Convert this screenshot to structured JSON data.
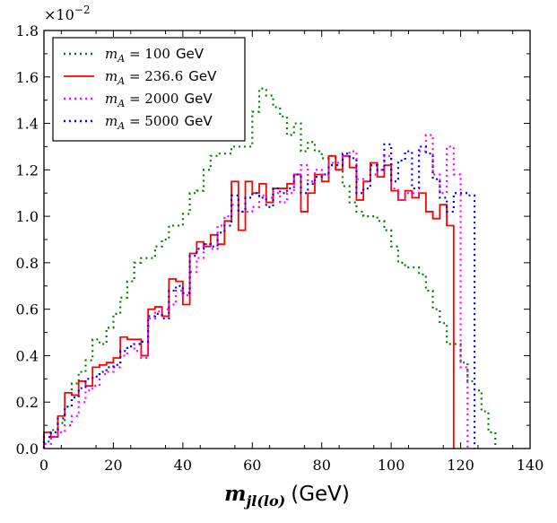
{
  "chart_data": {
    "type": "histogram",
    "title": "",
    "xlabel_math": "m",
    "xlabel_math_sub": "jl(lo)",
    "xlabel_unit": "(GeV)",
    "ylabel": "",
    "y_scale_base": "×10",
    "y_scale_exp": "−2",
    "xlim": [
      0,
      140
    ],
    "ylim": [
      0,
      1.8
    ],
    "x_ticks": [
      0,
      20,
      40,
      60,
      80,
      100,
      120,
      140
    ],
    "y_ticks": [
      0.0,
      0.2,
      0.4,
      0.6,
      0.8,
      1.0,
      1.2,
      1.4,
      1.6,
      1.8
    ],
    "y_tick_labels": [
      "0.0",
      "0.2",
      "0.4",
      "0.6",
      "0.8",
      "1.0",
      "1.2",
      "1.4",
      "1.6",
      "1.8"
    ],
    "legend_position": "top-left",
    "bin_edges_start": 0,
    "bin_width": 2,
    "series": [
      {
        "name": "mA = 100 GeV",
        "label_var": "m",
        "label_sub": "A",
        "label_value": " = 100",
        "label_unit": "GeV",
        "color": "#008000",
        "style": "dotted",
        "values": [
          0.03,
          0.08,
          0.11,
          0.18,
          0.28,
          0.33,
          0.38,
          0.47,
          0.45,
          0.52,
          0.58,
          0.65,
          0.72,
          0.8,
          0.82,
          0.82,
          0.87,
          0.9,
          0.96,
          0.96,
          1.01,
          1.1,
          1.11,
          1.2,
          1.26,
          1.27,
          1.27,
          1.3,
          1.3,
          1.3,
          1.45,
          1.55,
          1.52,
          1.47,
          1.43,
          1.35,
          1.4,
          1.28,
          1.32,
          1.28,
          1.25,
          1.26,
          1.2,
          1.13,
          1.06,
          1.02,
          1.0,
          1.0,
          0.98,
          0.94,
          0.87,
          0.8,
          0.78,
          0.78,
          0.75,
          0.68,
          0.6,
          0.54,
          0.45,
          0.45,
          0.37,
          0.29,
          0.25,
          0.16,
          0.07
        ]
      },
      {
        "name": "mA = 236.6 GeV",
        "label_var": "m",
        "label_sub": "A",
        "label_value": " = 236.6",
        "label_unit": "GeV",
        "color": "#ff0000",
        "style": "solid",
        "values": [
          0.07,
          0.05,
          0.14,
          0.24,
          0.23,
          0.29,
          0.27,
          0.35,
          0.36,
          0.37,
          0.39,
          0.48,
          0.47,
          0.47,
          0.4,
          0.6,
          0.61,
          0.57,
          0.73,
          0.72,
          0.62,
          0.84,
          0.89,
          0.87,
          0.92,
          0.88,
          0.98,
          1.15,
          0.94,
          1.15,
          1.1,
          1.14,
          1.06,
          1.12,
          1.12,
          1.14,
          1.18,
          1.02,
          1.1,
          1.18,
          1.15,
          1.26,
          1.2,
          1.26,
          1.21,
          1.07,
          1.15,
          1.23,
          1.17,
          1.22,
          1.11,
          1.07,
          1.11,
          1.08,
          1.1,
          1.02,
          0.99,
          1.05,
          0.96
        ]
      },
      {
        "name": "mA = 2000 GeV",
        "label_var": "m",
        "label_sub": "A",
        "label_value": " = 2000",
        "label_unit": "GeV",
        "color": "#ff00ff",
        "style": "dotted",
        "values": [
          0.02,
          0.05,
          0.07,
          0.1,
          0.14,
          0.2,
          0.25,
          0.27,
          0.32,
          0.33,
          0.35,
          0.4,
          0.44,
          0.42,
          0.39,
          0.56,
          0.59,
          0.6,
          0.62,
          0.68,
          0.66,
          0.76,
          0.82,
          0.88,
          0.86,
          0.96,
          1.0,
          1.05,
          1.02,
          1.02,
          1.04,
          1.09,
          1.08,
          1.1,
          1.06,
          1.1,
          1.18,
          1.22,
          1.15,
          1.2,
          1.18,
          1.23,
          1.23,
          1.26,
          1.28,
          1.16,
          1.15,
          1.18,
          1.2,
          1.26,
          1.12,
          1.07,
          1.1,
          1.1,
          1.28,
          1.35,
          1.18,
          1.1,
          1.3,
          1.18,
          0.35
        ]
      },
      {
        "name": "mA = 5000 GeV",
        "label_var": "m",
        "label_sub": "A",
        "label_value": " = 5000",
        "label_unit": "GeV",
        "color": "#0000ff",
        "style": "dotted",
        "values": [
          0.05,
          0.07,
          0.13,
          0.18,
          0.22,
          0.26,
          0.3,
          0.31,
          0.33,
          0.35,
          0.36,
          0.42,
          0.44,
          0.45,
          0.46,
          0.57,
          0.58,
          0.56,
          0.68,
          0.7,
          0.67,
          0.83,
          0.86,
          0.88,
          0.87,
          0.93,
          0.96,
          1.09,
          1.02,
          1.08,
          1.1,
          1.08,
          1.04,
          1.12,
          1.1,
          1.12,
          1.18,
          1.1,
          1.14,
          1.17,
          1.18,
          1.22,
          1.22,
          1.27,
          1.25,
          1.1,
          1.12,
          1.22,
          1.2,
          1.31,
          1.15,
          1.24,
          1.28,
          1.12,
          1.3,
          1.27,
          1.16,
          1.08,
          1.02,
          1.1,
          1.1,
          1.09
        ]
      }
    ]
  }
}
